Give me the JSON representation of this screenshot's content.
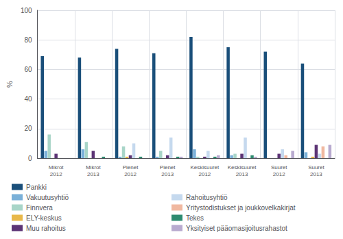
{
  "chart_data": {
    "type": "bar",
    "categories": [
      "Mikrot\n2012",
      "Mikrot\n2013",
      "Pienet\n2012",
      "Pienet\n2013",
      "Keskisuuret\n2012",
      "Keskisuuret\n2013",
      "Suuret\n2012",
      "Suuret\n2013"
    ],
    "series": [
      {
        "name": "Pankki",
        "color": "#1a4f7a",
        "values": [
          69,
          68,
          74,
          71,
          82,
          75,
          72,
          64
        ]
      },
      {
        "name": "Vakuutusyhtiö",
        "color": "#7ab0d8",
        "values": [
          5,
          6,
          1,
          1,
          6,
          2,
          0,
          4
        ]
      },
      {
        "name": "Finnvera",
        "color": "#a8d5c8",
        "values": [
          16,
          11,
          8,
          5,
          1,
          3,
          0,
          0
        ]
      },
      {
        "name": "ELY-keskus",
        "color": "#e8b84b",
        "values": [
          0,
          0,
          1,
          0,
          0,
          0,
          0,
          1
        ]
      },
      {
        "name": "Muu rahoitus",
        "color": "#5c3475",
        "values": [
          3,
          5,
          2,
          2,
          1,
          3,
          3,
          9
        ]
      },
      {
        "name": "Rahoitusyhtiö",
        "color": "#c5d9ee",
        "values": [
          0,
          0,
          10,
          14,
          5,
          14,
          6,
          3
        ]
      },
      {
        "name": "Yritystodistukset ja joukkovelkakirjat",
        "color": "#f0b8a0",
        "values": [
          0,
          0,
          0,
          0,
          0,
          0,
          2,
          8
        ]
      },
      {
        "name": "Tekes",
        "color": "#2e8b70",
        "values": [
          0,
          1,
          1,
          1,
          1,
          2,
          0,
          0
        ]
      },
      {
        "name": "Yksityiset pääomasijoitusrahastot",
        "color": "#b8aacf",
        "values": [
          0,
          0,
          0,
          1,
          2,
          1,
          5,
          9
        ]
      }
    ],
    "ylabel": "%",
    "ylim": [
      0,
      100
    ],
    "yticks": [
      0,
      20,
      40,
      60,
      80,
      100
    ],
    "grid": true,
    "legend": "bottom"
  }
}
